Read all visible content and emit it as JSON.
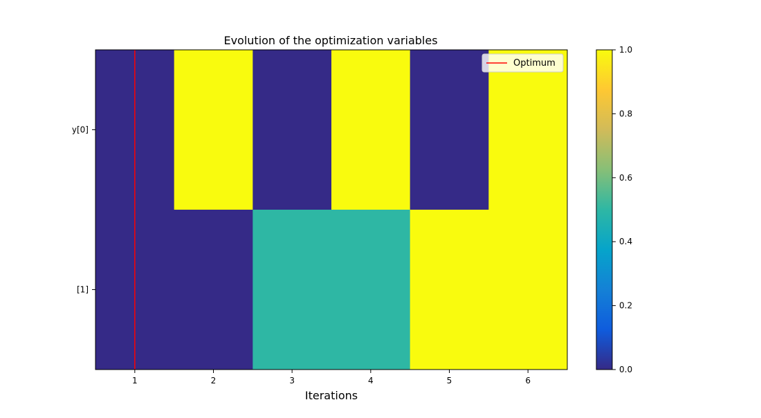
{
  "chart_data": {
    "type": "heatmap",
    "title": "Evolution of the optimization variables",
    "xlabel": "Iterations",
    "ylabel": "",
    "x": [
      1,
      2,
      3,
      4,
      5,
      6
    ],
    "x_tick_labels": [
      "1",
      "2",
      "3",
      "4",
      "5",
      "6"
    ],
    "rows": [
      "y[0]",
      "[1]"
    ],
    "values": [
      [
        0,
        1,
        0,
        1,
        0,
        1
      ],
      [
        0,
        0,
        0.5,
        0.5,
        1,
        1
      ]
    ],
    "colorbar": {
      "range": [
        0,
        1
      ],
      "tick_labels": [
        "0.0",
        "0.2",
        "0.4",
        "0.6",
        "0.8",
        "1.0"
      ],
      "ticks": [
        0,
        0.2,
        0.4,
        0.6,
        0.8,
        1.0
      ],
      "colormap": [
        "#352a87",
        "#0f5cdd",
        "#1481d6",
        "#06a4ca",
        "#2eb7a4",
        "#87bf77",
        "#d1bb59",
        "#fec832",
        "#f9fb0e"
      ]
    },
    "optimum": {
      "x": 1,
      "label": "Optimum",
      "color": "#ff0000"
    },
    "legend_position": "top-right",
    "grid": false
  }
}
